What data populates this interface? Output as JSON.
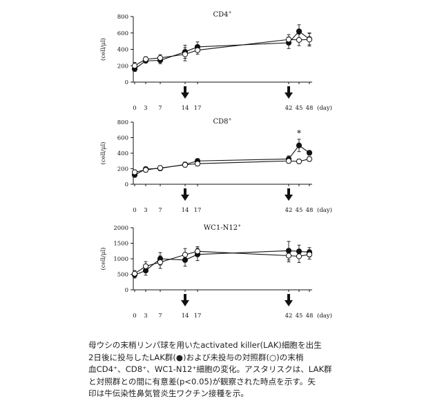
{
  "chart_data": [
    {
      "type": "line",
      "title": "CD4",
      "title_sup": "+",
      "ylabel": "(cell/μl)",
      "xunit": "(day)",
      "x": [
        0,
        3,
        7,
        14,
        17,
        42,
        45,
        48
      ],
      "x_ticks": [
        "0",
        "3",
        "7",
        "14",
        "17",
        "42",
        "45",
        "48"
      ],
      "ylim": [
        0,
        800
      ],
      "y_ticks": [
        "0",
        "200",
        "400",
        "600",
        "800"
      ],
      "series": [
        {
          "marker": "filled",
          "values": [
            160,
            260,
            265,
            370,
            430,
            480,
            620,
            525
          ],
          "err": [
            30,
            25,
            40,
            80,
            60,
            70,
            80,
            70
          ]
        },
        {
          "marker": "open",
          "values": [
            200,
            280,
            295,
            340,
            390,
            520,
            515,
            520
          ],
          "err": [
            40,
            30,
            40,
            80,
            50,
            60,
            70,
            80
          ]
        }
      ],
      "arrows_at": [
        14,
        42
      ],
      "annotations": []
    },
    {
      "type": "line",
      "title": "CD8",
      "title_sup": "+",
      "ylabel": "(cell/μl)",
      "xunit": "(day)",
      "x": [
        0,
        3,
        7,
        14,
        17,
        42,
        45,
        48
      ],
      "x_ticks": [
        "0",
        "3",
        "7",
        "14",
        "17",
        "42",
        "45",
        "48"
      ],
      "ylim": [
        0,
        800
      ],
      "y_ticks": [
        "0",
        "200",
        "400",
        "600",
        "800"
      ],
      "series": [
        {
          "marker": "filled",
          "values": [
            120,
            195,
            205,
            255,
            300,
            325,
            500,
            405
          ],
          "err": [
            30,
            30,
            30,
            30,
            30,
            40,
            80,
            30
          ]
        },
        {
          "marker": "open",
          "values": [
            155,
            185,
            210,
            250,
            265,
            300,
            295,
            325
          ],
          "err": [
            30,
            30,
            30,
            30,
            30,
            30,
            30,
            30
          ]
        }
      ],
      "arrows_at": [
        14,
        42
      ],
      "annotations": [
        {
          "x": 45,
          "y": 660,
          "text": "*"
        }
      ]
    },
    {
      "type": "line",
      "title": "WC1-N12",
      "title_sup": "+",
      "ylabel": "(cell/μl)",
      "xunit": "(day)",
      "x": [
        0,
        3,
        7,
        14,
        17,
        42,
        45,
        48
      ],
      "x_ticks": [
        "0",
        "3",
        "7",
        "14",
        "17",
        "42",
        "45",
        "48"
      ],
      "ylim": [
        0,
        2000
      ],
      "y_ticks": [
        "0",
        "500",
        "1000",
        "1500",
        "2000"
      ],
      "series": [
        {
          "marker": "filled",
          "values": [
            480,
            620,
            1000,
            960,
            1140,
            1260,
            1240,
            1210
          ],
          "err": [
            100,
            150,
            200,
            200,
            200,
            300,
            200,
            150
          ]
        },
        {
          "marker": "open",
          "values": [
            520,
            760,
            890,
            1130,
            1240,
            1100,
            1080,
            1140
          ],
          "err": [
            100,
            150,
            200,
            200,
            150,
            200,
            200,
            150
          ]
        }
      ],
      "arrows_at": [
        14,
        42
      ],
      "annotations": []
    }
  ],
  "caption_lines": [
    "母ウシの末梢リンパ球を用いたactivated killer(LAK)細胞を出生",
    "2日後に投与したLAK群(●)および未投与の対照群(○)の末梢",
    "血CD4⁺、CD8⁺、WC1-N12⁺細胞の変化。アスタリスクは、LAK群",
    "と対照群との間に有意差(p<0.05)が観察された時点を示す。矢",
    "印は牛伝染性鼻気管炎生ワクチン接種を示。"
  ],
  "colors": {
    "ink": "#111111",
    "marker_fill_open": "#ffffff"
  }
}
